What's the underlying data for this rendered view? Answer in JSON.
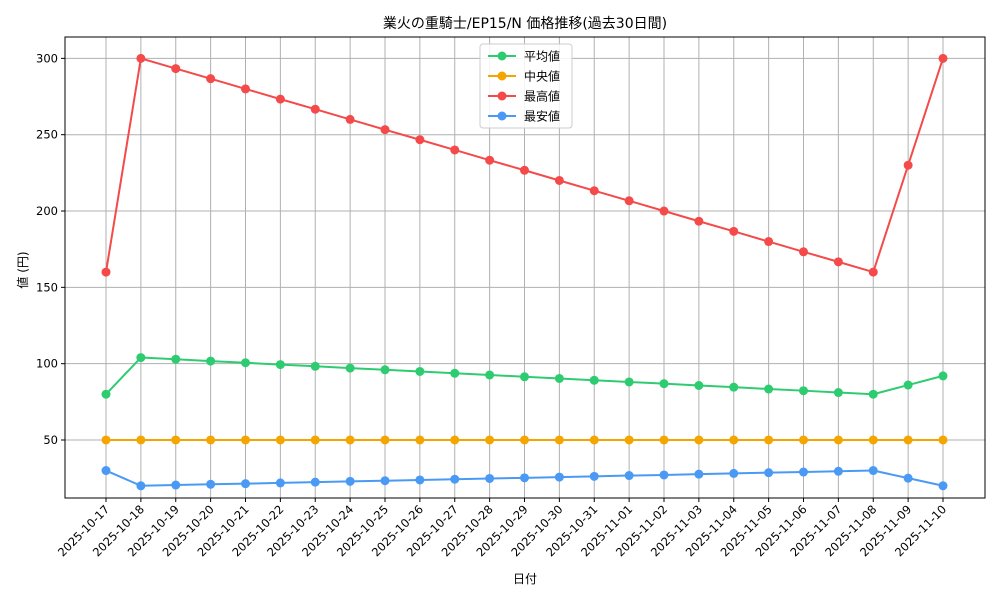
{
  "chart_data": {
    "type": "line",
    "title": "業火の重騎士/EP15/N 価格推移(過去30日間)",
    "xlabel": "日付",
    "ylabel": "値 (円)",
    "x": [
      "2025-10-17",
      "2025-10-18",
      "2025-10-19",
      "2025-10-20",
      "2025-10-21",
      "2025-10-22",
      "2025-10-23",
      "2025-10-24",
      "2025-10-25",
      "2025-10-26",
      "2025-10-27",
      "2025-10-28",
      "2025-10-29",
      "2025-10-30",
      "2025-10-31",
      "2025-11-01",
      "2025-11-02",
      "2025-11-03",
      "2025-11-04",
      "2025-11-05",
      "2025-11-06",
      "2025-11-07",
      "2025-11-08",
      "2025-11-09",
      "2025-11-10"
    ],
    "ylim": [
      12,
      314
    ],
    "yticks": [
      50,
      100,
      150,
      200,
      250,
      300
    ],
    "grid": true,
    "legend_position": "upper center",
    "series": [
      {
        "name": "平均値",
        "color": "#2ecc71",
        "values": [
          80,
          104,
          102.9,
          101.7,
          100.6,
          99.4,
          98.3,
          97.1,
          96.0,
          94.9,
          93.7,
          92.6,
          91.4,
          90.3,
          89.1,
          88.0,
          86.9,
          85.7,
          84.6,
          83.4,
          82.3,
          81.1,
          80,
          86,
          92
        ]
      },
      {
        "name": "中央値",
        "color": "#f5a500",
        "values": [
          50,
          50,
          50,
          50,
          50,
          50,
          50,
          50,
          50,
          50,
          50,
          50,
          50,
          50,
          50,
          50,
          50,
          50,
          50,
          50,
          50,
          50,
          50,
          50,
          50
        ]
      },
      {
        "name": "最高値",
        "color": "#f44a4a",
        "values": [
          160,
          300,
          293.3,
          286.7,
          280,
          273.3,
          266.7,
          260,
          253.3,
          246.7,
          240,
          233.3,
          226.7,
          220,
          213.3,
          206.7,
          200,
          193.3,
          186.7,
          180,
          173.3,
          166.7,
          160,
          230,
          300
        ]
      },
      {
        "name": "最安値",
        "color": "#4a9af5",
        "values": [
          30,
          20,
          20.5,
          21.0,
          21.4,
          21.9,
          22.4,
          22.9,
          23.3,
          23.8,
          24.3,
          24.8,
          25.2,
          25.7,
          26.2,
          26.7,
          27.1,
          27.6,
          28.1,
          28.6,
          29.0,
          29.5,
          30,
          25,
          20
        ]
      }
    ]
  },
  "colors": {
    "grid": "#b0b0b0",
    "axis": "#000000",
    "legend_border": "#cccccc"
  }
}
